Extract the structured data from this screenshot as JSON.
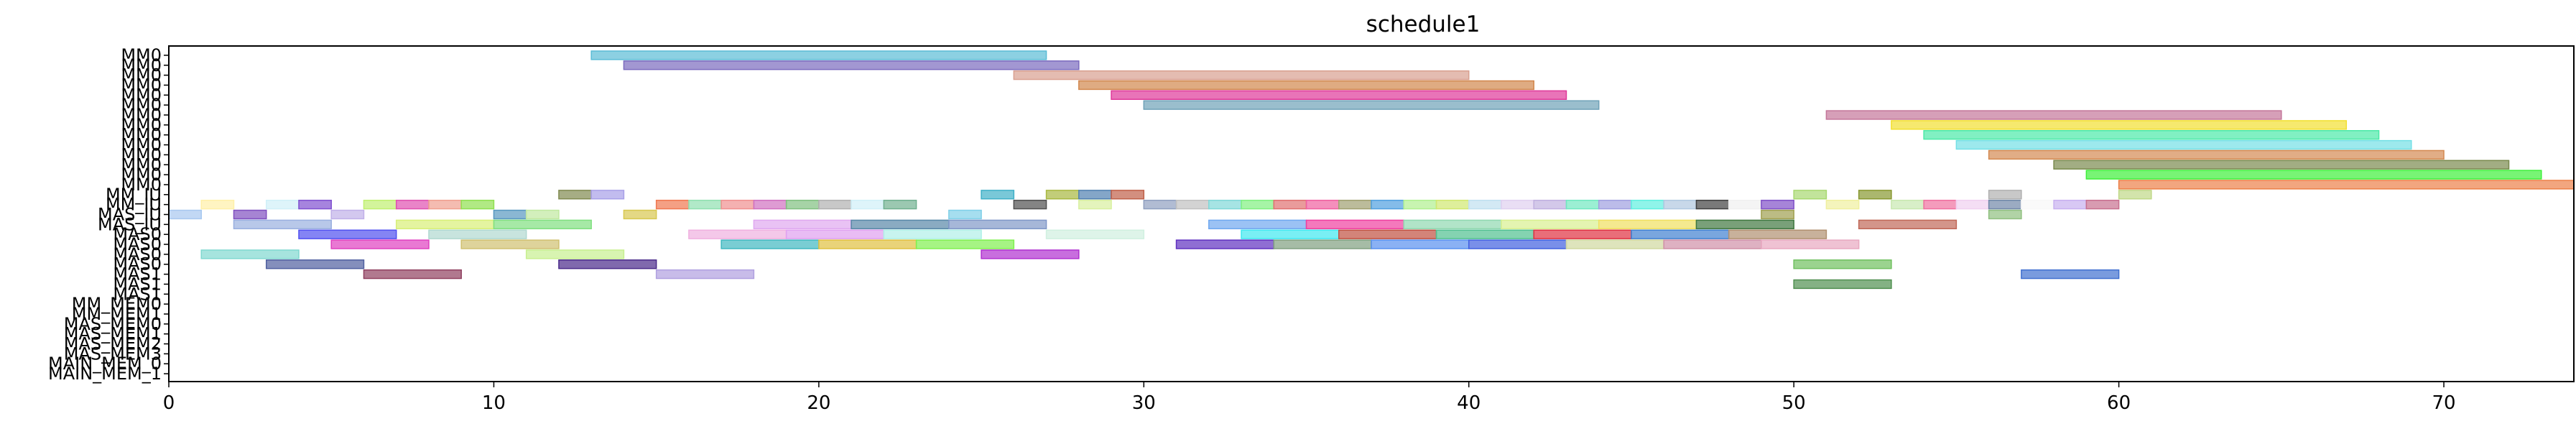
{
  "chart_data": {
    "type": "gantt",
    "title": "schedule1",
    "xlabel": "",
    "ylabel": "",
    "xlim": [
      0,
      74
    ],
    "x_ticks": [
      0,
      10,
      20,
      30,
      40,
      50,
      60,
      70
    ],
    "grid": false,
    "legend": "none",
    "rows": [
      "MM0",
      "MM0",
      "MM0",
      "MM0",
      "MM0",
      "MM0",
      "MM0",
      "MM0",
      "MM0",
      "MM0",
      "MM0",
      "MM0",
      "MM0",
      "MM0",
      "MM_IU",
      "MM_IU",
      "MAS_IU",
      "MAS_IU",
      "MAS0",
      "MAS0",
      "MAS0",
      "MAS0",
      "MAS1",
      "MAS1",
      "MAS1",
      "MM_MEM0",
      "MM_MEM1",
      "MAS_MEM0",
      "MAS_MEM1",
      "MAS_MEM2",
      "MAS_MEM3",
      "MAIN_MEM_0",
      "MAIN_MEM_1"
    ],
    "tasks": [
      {
        "row": 0,
        "start": 13,
        "end": 27,
        "color": "#5bbcd6"
      },
      {
        "row": 1,
        "start": 14,
        "end": 28,
        "color": "#7b6bbf"
      },
      {
        "row": 2,
        "start": 26,
        "end": 40,
        "color": "#d9a090"
      },
      {
        "row": 3,
        "start": 28,
        "end": 42,
        "color": "#d2874d"
      },
      {
        "row": 4,
        "start": 29,
        "end": 43,
        "color": "#e0399a"
      },
      {
        "row": 5,
        "start": 30,
        "end": 44,
        "color": "#6fa2b8"
      },
      {
        "row": 6,
        "start": 51,
        "end": 65,
        "color": "#c4769a"
      },
      {
        "row": 7,
        "start": 53,
        "end": 67,
        "color": "#f2e030"
      },
      {
        "row": 8,
        "start": 54,
        "end": 68,
        "color": "#4ceaa8"
      },
      {
        "row": 9,
        "start": 55,
        "end": 69,
        "color": "#74e0e6"
      },
      {
        "row": 10,
        "start": 56,
        "end": 70,
        "color": "#d48a52"
      },
      {
        "row": 11,
        "start": 58,
        "end": 72,
        "color": "#7a8a4e"
      },
      {
        "row": 12,
        "start": 59,
        "end": 73,
        "color": "#3ef03a"
      },
      {
        "row": 13,
        "start": 60,
        "end": 74,
        "color": "#ec8048"
      },
      {
        "row": 14,
        "start": 12,
        "end": 13,
        "color": "#808a50"
      },
      {
        "row": 14,
        "start": 13,
        "end": 14,
        "color": "#a8a0e8"
      },
      {
        "row": 14,
        "start": 25,
        "end": 26,
        "color": "#40b0c8"
      },
      {
        "row": 14,
        "start": 27,
        "end": 28,
        "color": "#a8b840"
      },
      {
        "row": 14,
        "start": 28,
        "end": 29,
        "color": "#5080b0"
      },
      {
        "row": 14,
        "start": 29,
        "end": 30,
        "color": "#c06048"
      },
      {
        "row": 14,
        "start": 50,
        "end": 51,
        "color": "#a8d870"
      },
      {
        "row": 14,
        "start": 52,
        "end": 53,
        "color": "#889830"
      },
      {
        "row": 14,
        "start": 56,
        "end": 57,
        "color": "#b0b0b0"
      },
      {
        "row": 14,
        "start": 60,
        "end": 61,
        "color": "#c0d888"
      },
      {
        "row": 15,
        "start": 1,
        "end": 2,
        "color": "#fff0a8"
      },
      {
        "row": 15,
        "start": 3,
        "end": 4,
        "color": "#d0f0f8"
      },
      {
        "row": 15,
        "start": 4,
        "end": 5,
        "color": "#8050d0"
      },
      {
        "row": 15,
        "start": 6,
        "end": 7,
        "color": "#c0f070"
      },
      {
        "row": 15,
        "start": 7,
        "end": 8,
        "color": "#e050b0"
      },
      {
        "row": 15,
        "start": 8,
        "end": 9,
        "color": "#f0a090"
      },
      {
        "row": 15,
        "start": 9,
        "end": 10,
        "color": "#90e050"
      },
      {
        "row": 15,
        "start": 15,
        "end": 16,
        "color": "#f07850"
      },
      {
        "row": 15,
        "start": 16,
        "end": 17,
        "color": "#90e0b0"
      },
      {
        "row": 15,
        "start": 17,
        "end": 18,
        "color": "#f09090"
      },
      {
        "row": 15,
        "start": 18,
        "end": 19,
        "color": "#d070c0"
      },
      {
        "row": 15,
        "start": 19,
        "end": 20,
        "color": "#80c080"
      },
      {
        "row": 15,
        "start": 20,
        "end": 21,
        "color": "#b0b0b0"
      },
      {
        "row": 15,
        "start": 21,
        "end": 22,
        "color": "#d0f0f8"
      },
      {
        "row": 15,
        "start": 22,
        "end": 23,
        "color": "#70b090"
      },
      {
        "row": 15,
        "start": 26,
        "end": 27,
        "color": "#505050"
      },
      {
        "row": 15,
        "start": 28,
        "end": 29,
        "color": "#d8f0a0"
      },
      {
        "row": 15,
        "start": 30,
        "end": 31,
        "color": "#90a0c0"
      },
      {
        "row": 15,
        "start": 31,
        "end": 32,
        "color": "#c0c0c0"
      },
      {
        "row": 15,
        "start": 32,
        "end": 33,
        "color": "#80d8d8"
      },
      {
        "row": 15,
        "start": 33,
        "end": 34,
        "color": "#80f080"
      },
      {
        "row": 15,
        "start": 34,
        "end": 35,
        "color": "#e07070"
      },
      {
        "row": 15,
        "start": 35,
        "end": 36,
        "color": "#f060a0"
      },
      {
        "row": 15,
        "start": 36,
        "end": 37,
        "color": "#a0a070"
      },
      {
        "row": 15,
        "start": 37,
        "end": 38,
        "color": "#50a0e0"
      },
      {
        "row": 15,
        "start": 38,
        "end": 39,
        "color": "#b0f090"
      },
      {
        "row": 15,
        "start": 39,
        "end": 40,
        "color": "#d0e870"
      },
      {
        "row": 15,
        "start": 40,
        "end": 41,
        "color": "#c0e0f0"
      },
      {
        "row": 15,
        "start": 41,
        "end": 42,
        "color": "#e0d0f0"
      },
      {
        "row": 15,
        "start": 42,
        "end": 43,
        "color": "#c0b0e0"
      },
      {
        "row": 15,
        "start": 43,
        "end": 44,
        "color": "#70e8c0"
      },
      {
        "row": 15,
        "start": 44,
        "end": 45,
        "color": "#a0a0e0"
      },
      {
        "row": 15,
        "start": 45,
        "end": 46,
        "color": "#60f0e0"
      },
      {
        "row": 15,
        "start": 46,
        "end": 47,
        "color": "#b0c8e0"
      },
      {
        "row": 15,
        "start": 47,
        "end": 48,
        "color": "#404040"
      },
      {
        "row": 15,
        "start": 48,
        "end": 49,
        "color": "#f0f0f0"
      },
      {
        "row": 15,
        "start": 49,
        "end": 50,
        "color": "#8050c8"
      },
      {
        "row": 15,
        "start": 51,
        "end": 52,
        "color": "#f0f0a0"
      },
      {
        "row": 15,
        "start": 53,
        "end": 54,
        "color": "#c8e8b0"
      },
      {
        "row": 15,
        "start": 54,
        "end": 55,
        "color": "#f070a0"
      },
      {
        "row": 15,
        "start": 55,
        "end": 56,
        "color": "#f0d0f0"
      },
      {
        "row": 15,
        "start": 56,
        "end": 57,
        "color": "#7088a8"
      },
      {
        "row": 15,
        "start": 57,
        "end": 58,
        "color": "#f8f8f8"
      },
      {
        "row": 15,
        "start": 58,
        "end": 59,
        "color": "#c8b0f0"
      },
      {
        "row": 15,
        "start": 59,
        "end": 60,
        "color": "#c87090"
      },
      {
        "row": 16,
        "start": 0,
        "end": 1,
        "color": "#a8c8f0"
      },
      {
        "row": 16,
        "start": 2,
        "end": 3,
        "color": "#8050c0"
      },
      {
        "row": 16,
        "start": 5,
        "end": 6,
        "color": "#c0b0e8"
      },
      {
        "row": 16,
        "start": 10,
        "end": 11,
        "color": "#5898c0"
      },
      {
        "row": 16,
        "start": 11,
        "end": 12,
        "color": "#c0e8a0"
      },
      {
        "row": 16,
        "start": 14,
        "end": 15,
        "color": "#d8c850"
      },
      {
        "row": 16,
        "start": 24,
        "end": 25,
        "color": "#80d0e8"
      },
      {
        "row": 16,
        "start": 49,
        "end": 50,
        "color": "#a0a050"
      },
      {
        "row": 16,
        "start": 56,
        "end": 57,
        "color": "#90c080"
      },
      {
        "row": 17,
        "start": 2,
        "end": 5,
        "color": "#9ab0e0"
      },
      {
        "row": 17,
        "start": 7,
        "end": 10,
        "color": "#d8f078"
      },
      {
        "row": 17,
        "start": 10,
        "end": 13,
        "color": "#80e080"
      },
      {
        "row": 17,
        "start": 18,
        "end": 21,
        "color": "#e0a8f0"
      },
      {
        "row": 17,
        "start": 21,
        "end": 24,
        "color": "#5888a8"
      },
      {
        "row": 17,
        "start": 24,
        "end": 27,
        "color": "#8098c8"
      },
      {
        "row": 17,
        "start": 32,
        "end": 35,
        "color": "#70a8f0"
      },
      {
        "row": 17,
        "start": 35,
        "end": 38,
        "color": "#f040a0"
      },
      {
        "row": 17,
        "start": 38,
        "end": 41,
        "color": "#90d8b0"
      },
      {
        "row": 17,
        "start": 41,
        "end": 44,
        "color": "#d8f090"
      },
      {
        "row": 17,
        "start": 44,
        "end": 47,
        "color": "#f0e060"
      },
      {
        "row": 17,
        "start": 47,
        "end": 50,
        "color": "#407840"
      },
      {
        "row": 17,
        "start": 52,
        "end": 55,
        "color": "#c06858"
      },
      {
        "row": 18,
        "start": 4,
        "end": 7,
        "color": "#5050f0"
      },
      {
        "row": 18,
        "start": 8,
        "end": 11,
        "color": "#b0d8d0"
      },
      {
        "row": 18,
        "start": 16,
        "end": 19,
        "color": "#f0b0e0"
      },
      {
        "row": 18,
        "start": 19,
        "end": 22,
        "color": "#e0a0f0"
      },
      {
        "row": 18,
        "start": 22,
        "end": 25,
        "color": "#b0f0e8"
      },
      {
        "row": 18,
        "start": 27,
        "end": 30,
        "color": "#d0f0e0"
      },
      {
        "row": 18,
        "start": 33,
        "end": 36,
        "color": "#40e8f0"
      },
      {
        "row": 18,
        "start": 36,
        "end": 39,
        "color": "#c05040"
      },
      {
        "row": 18,
        "start": 39,
        "end": 42,
        "color": "#50c090"
      },
      {
        "row": 18,
        "start": 42,
        "end": 45,
        "color": "#e03040"
      },
      {
        "row": 18,
        "start": 45,
        "end": 48,
        "color": "#4080d0"
      },
      {
        "row": 18,
        "start": 48,
        "end": 51,
        "color": "#b09070"
      },
      {
        "row": 19,
        "start": 5,
        "end": 8,
        "color": "#e040c0"
      },
      {
        "row": 19,
        "start": 9,
        "end": 12,
        "color": "#d0c070"
      },
      {
        "row": 19,
        "start": 17,
        "end": 20,
        "color": "#40b8c0"
      },
      {
        "row": 19,
        "start": 20,
        "end": 23,
        "color": "#e0c040"
      },
      {
        "row": 19,
        "start": 23,
        "end": 26,
        "color": "#80f050"
      },
      {
        "row": 19,
        "start": 31,
        "end": 34,
        "color": "#6030c0"
      },
      {
        "row": 19,
        "start": 34,
        "end": 37,
        "color": "#80a080"
      },
      {
        "row": 19,
        "start": 37,
        "end": 40,
        "color": "#5890f0"
      },
      {
        "row": 19,
        "start": 40,
        "end": 43,
        "color": "#4060e0"
      },
      {
        "row": 19,
        "start": 43,
        "end": 46,
        "color": "#d0d8a0"
      },
      {
        "row": 19,
        "start": 46,
        "end": 49,
        "color": "#d090a8"
      },
      {
        "row": 19,
        "start": 49,
        "end": 52,
        "color": "#e8a8c0"
      },
      {
        "row": 20,
        "start": 1,
        "end": 4,
        "color": "#80d8d0"
      },
      {
        "row": 20,
        "start": 11,
        "end": 14,
        "color": "#c8f090"
      },
      {
        "row": 20,
        "start": 25,
        "end": 28,
        "color": "#b030d0"
      },
      {
        "row": 21,
        "start": 3,
        "end": 6,
        "color": "#5060a0"
      },
      {
        "row": 21,
        "start": 12,
        "end": 15,
        "color": "#4a2a8a"
      },
      {
        "row": 21,
        "start": 50,
        "end": 53,
        "color": "#70c060"
      },
      {
        "row": 22,
        "start": 6,
        "end": 9,
        "color": "#904060"
      },
      {
        "row": 22,
        "start": 15,
        "end": 18,
        "color": "#b0a0e0"
      },
      {
        "row": 22,
        "start": 57,
        "end": 60,
        "color": "#4070d0"
      },
      {
        "row": 23,
        "start": 50,
        "end": 53,
        "color": "#509050"
      }
    ]
  }
}
